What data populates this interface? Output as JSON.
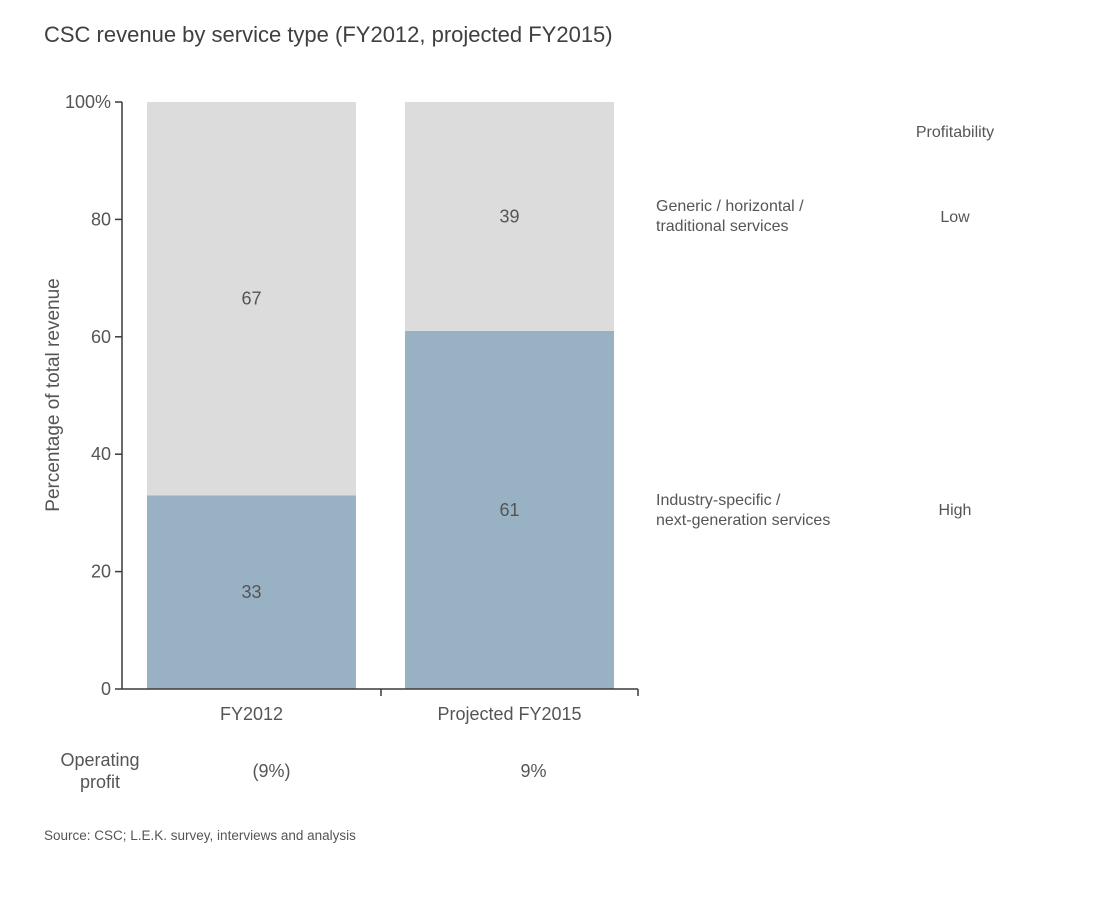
{
  "chart_data": {
    "type": "bar",
    "stacked": true,
    "title": "CSC revenue by service type (FY2012, projected FY2015)",
    "ylabel": "Percentage of total revenue",
    "xlabel": "",
    "ylim": [
      0,
      100
    ],
    "yticks": [
      0,
      20,
      40,
      60,
      80,
      100
    ],
    "ytick_labels": [
      "0",
      "20",
      "40",
      "60",
      "80",
      "100%"
    ],
    "grid": false,
    "categories": [
      "FY2012",
      "Projected FY2015"
    ],
    "series": [
      {
        "name": "Industry-specific / next-generation services",
        "name_lines": [
          "Industry-specific /",
          "next-generation services"
        ],
        "profitability": "High",
        "color": "#98b1c3",
        "values": [
          33,
          61
        ]
      },
      {
        "name": "Generic / horizontal / traditional services",
        "name_lines": [
          "Generic / horizontal /",
          "traditional services"
        ],
        "profitability": "Low",
        "color": "#dcdcdc",
        "values": [
          67,
          39
        ]
      }
    ],
    "profitability_header": "Profitability",
    "operating_profit": {
      "label_lines": [
        "Operating",
        "profit"
      ],
      "values": [
        "(9%)",
        "9%"
      ]
    },
    "source": "Source: CSC; L.E.K. survey, interviews and analysis"
  }
}
